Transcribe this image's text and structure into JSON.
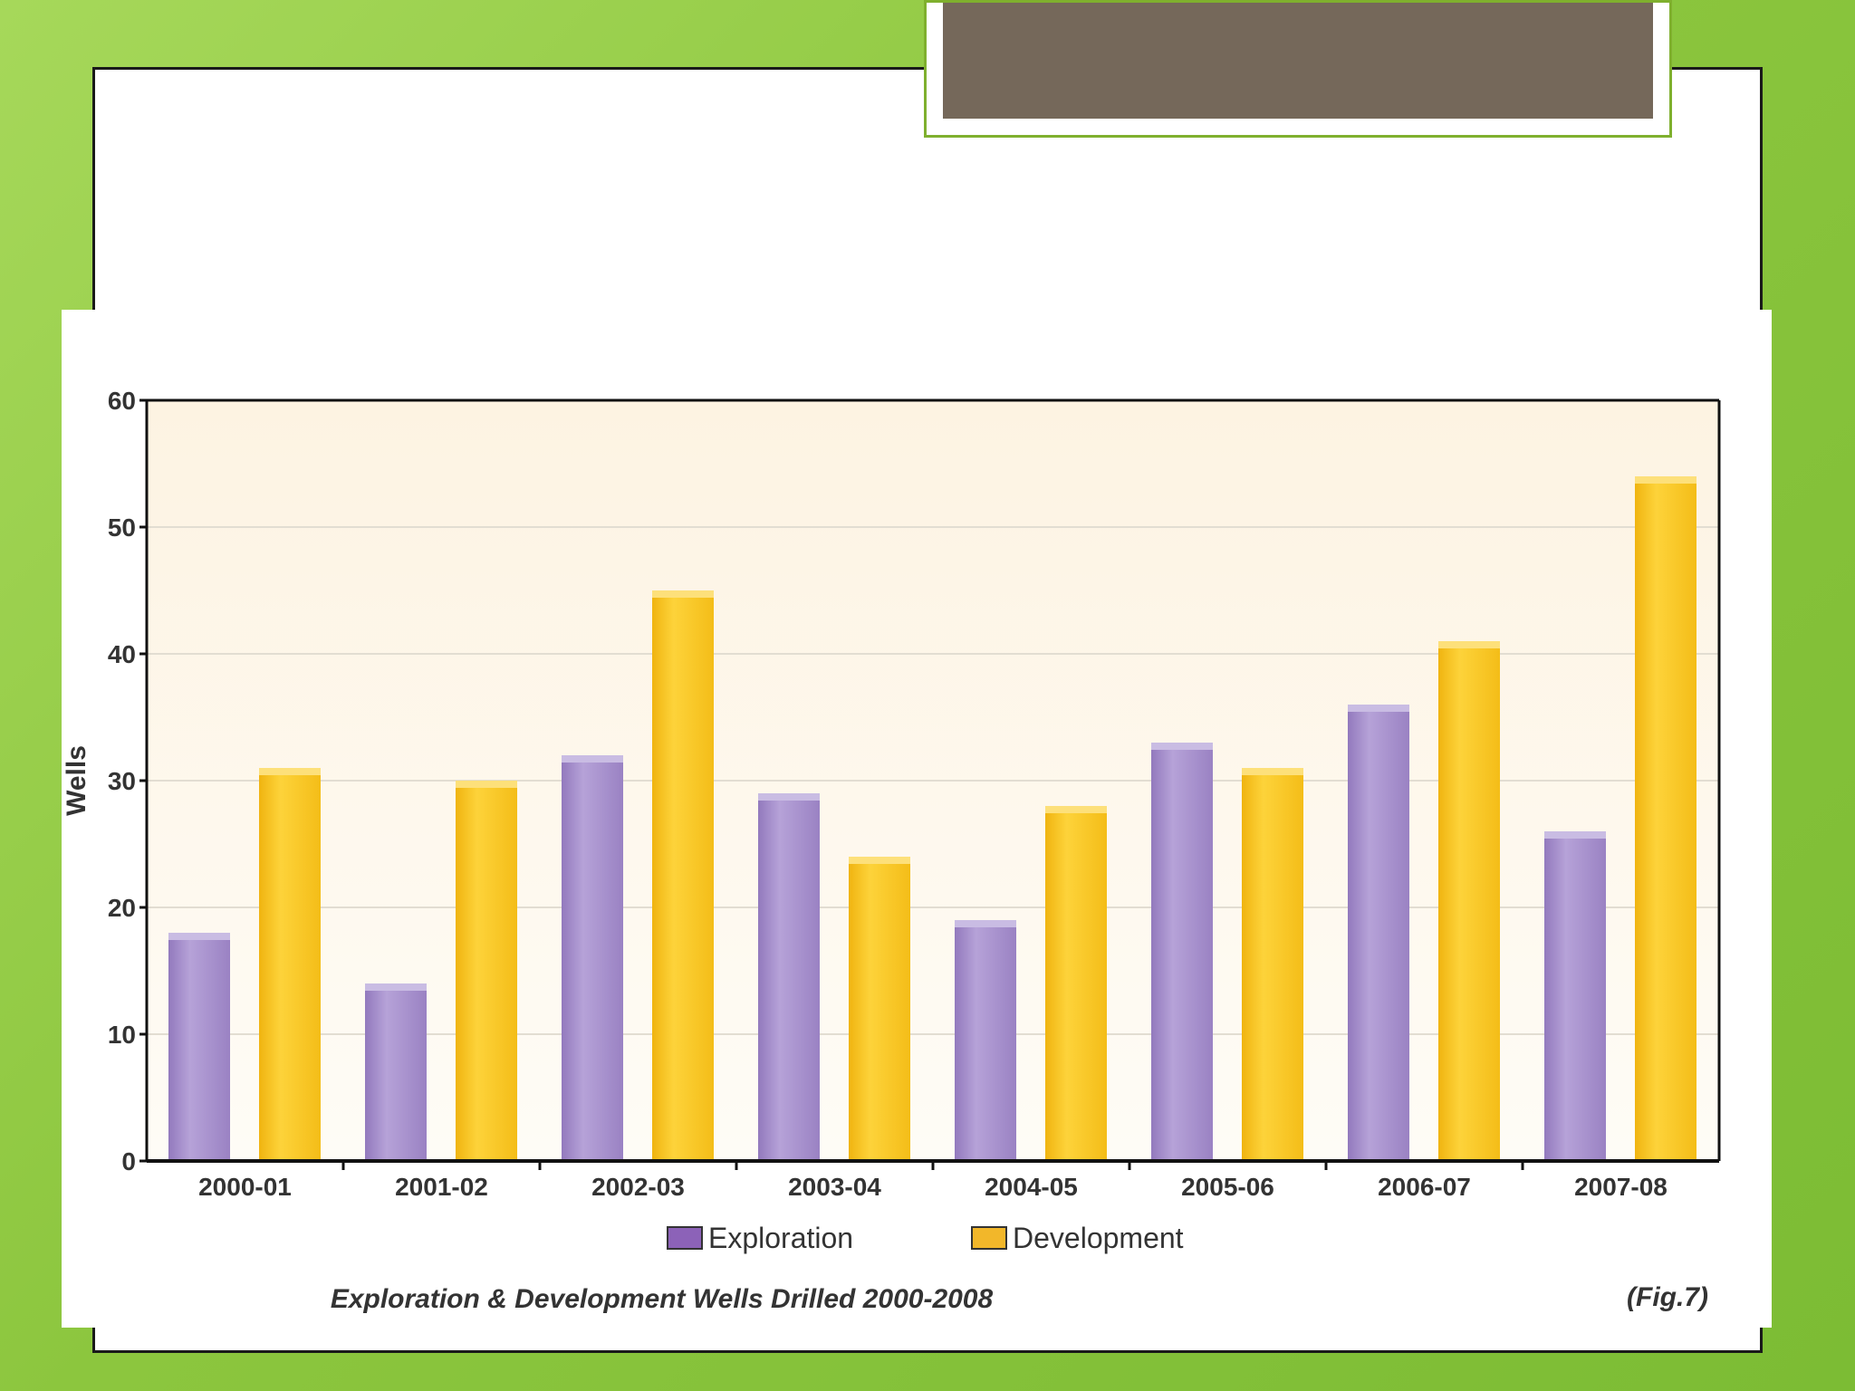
{
  "chart_data": {
    "type": "bar",
    "title": "",
    "caption": "Exploration & Development Wells Drilled 2000-2008",
    "figure_label": "(Fig.7)",
    "xlabel": "",
    "ylabel": "Wells",
    "ylim": [
      0,
      60
    ],
    "yticks": [
      "0",
      "10",
      "20",
      "30",
      "40",
      "50",
      "60"
    ],
    "grid": true,
    "legend_position": "bottom-center",
    "categories": [
      "2000-01",
      "2001-02",
      "2002-03",
      "2003-04",
      "2004-05",
      "2005-06",
      "2006-07",
      "2007-08"
    ],
    "series": [
      {
        "name": "Exploration",
        "color": "#a791cd",
        "values": [
          18,
          14,
          32,
          29,
          19,
          33,
          36,
          26
        ]
      },
      {
        "name": "Development",
        "color": "#f8c61e",
        "values": [
          31,
          30,
          45,
          24,
          28,
          31,
          41,
          54
        ]
      }
    ]
  },
  "colors": {
    "background": "#8cc63e",
    "title_bar": "#75685a",
    "plot_area_top": "#fdf3e2",
    "legend_exploration": "#8c62b8",
    "legend_development": "#f2b72a"
  }
}
